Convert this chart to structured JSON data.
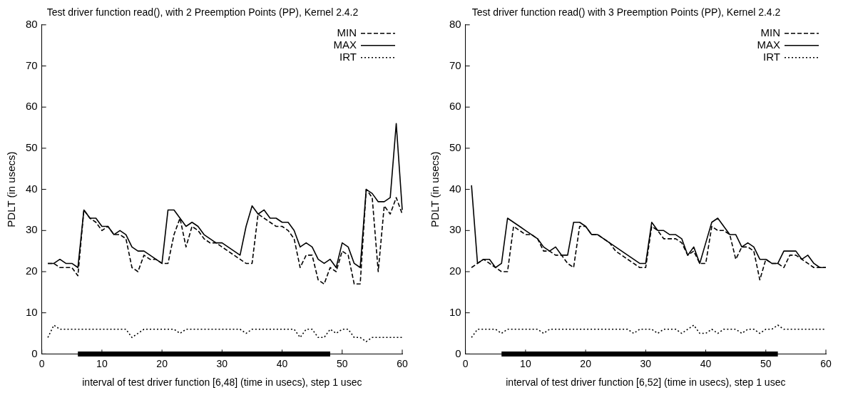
{
  "chart_data": [
    {
      "type": "line",
      "title": "Test driver function read(), with 2 Preemption Points (PP), Kernel 2.4.2",
      "xlabel": "interval of test driver function [6,48] (time in usecs), step 1 usec",
      "ylabel": "PDLT (in usecs)",
      "x": [
        1,
        2,
        3,
        4,
        5,
        6,
        7,
        8,
        9,
        10,
        11,
        12,
        13,
        14,
        15,
        16,
        17,
        18,
        19,
        20,
        21,
        22,
        23,
        24,
        25,
        26,
        27,
        28,
        29,
        30,
        31,
        32,
        33,
        34,
        35,
        36,
        37,
        38,
        39,
        40,
        41,
        42,
        43,
        44,
        45,
        46,
        47,
        48,
        49,
        50,
        51,
        52,
        53,
        54,
        55,
        56,
        57,
        58,
        59,
        60
      ],
      "series": [
        {
          "name": "MIN",
          "color": "#000000",
          "line_style": "dashed",
          "values": [
            22,
            22,
            21,
            21,
            21,
            19,
            35,
            33,
            32,
            30,
            31,
            29,
            29,
            28,
            21,
            20,
            24,
            23,
            23,
            22,
            22,
            29,
            33,
            26,
            31,
            30,
            28,
            27,
            27,
            26,
            25,
            24,
            23,
            22,
            22,
            34,
            33,
            32,
            31,
            31,
            30,
            28,
            21,
            24,
            24,
            18,
            17,
            21,
            20,
            25,
            24,
            17,
            17,
            40,
            38,
            20,
            36,
            34,
            38,
            34
          ]
        },
        {
          "name": "MAX",
          "color": "#000000",
          "line_style": "solid",
          "values": [
            22,
            22,
            23,
            22,
            22,
            21,
            35,
            33,
            33,
            31,
            31,
            29,
            30,
            29,
            26,
            25,
            25,
            24,
            23,
            22,
            35,
            35,
            33,
            31,
            32,
            31,
            29,
            28,
            27,
            27,
            26,
            25,
            24,
            31,
            36,
            34,
            35,
            33,
            33,
            32,
            32,
            30,
            26,
            27,
            26,
            23,
            22,
            23,
            21,
            27,
            26,
            22,
            21,
            40,
            39,
            37,
            37,
            38,
            56,
            35
          ]
        },
        {
          "name": "IRT",
          "color": "#000000",
          "line_style": "dotted",
          "values": [
            4,
            7,
            6,
            6,
            6,
            6,
            6,
            6,
            6,
            6,
            6,
            6,
            6,
            6,
            4,
            5,
            6,
            6,
            6,
            6,
            6,
            6,
            5,
            6,
            6,
            6,
            6,
            6,
            6,
            6,
            6,
            6,
            6,
            5,
            6,
            6,
            6,
            6,
            6,
            6,
            6,
            6,
            4,
            6,
            6,
            4,
            4,
            6,
            5,
            6,
            6,
            4,
            4,
            3,
            4,
            4,
            4,
            4,
            4,
            4
          ]
        },
        {
          "color": "#000000",
          "x": [
            6,
            48
          ],
          "values": [
            0,
            0
          ]
        }
      ],
      "xlim": [
        0,
        60
      ],
      "xticks": [
        0,
        10,
        20,
        30,
        40,
        50,
        60
      ],
      "ylim": [
        0,
        80
      ],
      "yticks": [
        0,
        10,
        20,
        30,
        40,
        50,
        60,
        70,
        80
      ],
      "grid": false,
      "legend": "top right"
    },
    {
      "type": "line",
      "title": "Test driver function read() with 3 Preemption Points (PP), Kernel 2.4.2",
      "xlabel": "interval of test driver function [6,52] (time in usecs), step 1 usec",
      "ylabel": "PDLT (in usecs)",
      "x": [
        1,
        2,
        3,
        4,
        5,
        6,
        7,
        8,
        9,
        10,
        11,
        12,
        13,
        14,
        15,
        16,
        17,
        18,
        19,
        20,
        21,
        22,
        23,
        24,
        25,
        26,
        27,
        28,
        29,
        30,
        31,
        32,
        33,
        34,
        35,
        36,
        37,
        38,
        39,
        40,
        41,
        42,
        43,
        44,
        45,
        46,
        47,
        48,
        49,
        50,
        51,
        52,
        53,
        54,
        55,
        56,
        57,
        58,
        59,
        60
      ],
      "series": [
        {
          "name": "MIN",
          "color": "#000000",
          "line_style": "dashed",
          "values": [
            21,
            22,
            23,
            22,
            21,
            20,
            20,
            31,
            30,
            29,
            29,
            28,
            25,
            25,
            24,
            24,
            22,
            21,
            31,
            31,
            29,
            29,
            28,
            27,
            25,
            24,
            23,
            22,
            21,
            21,
            31,
            30,
            28,
            28,
            28,
            27,
            24,
            25,
            22,
            22,
            31,
            30,
            30,
            29,
            23,
            26,
            26,
            25,
            18,
            23,
            22,
            22,
            21,
            24,
            24,
            23,
            22,
            21,
            21,
            21
          ]
        },
        {
          "name": "MAX",
          "color": "#000000",
          "line_style": "solid",
          "values": [
            41,
            22,
            23,
            23,
            21,
            22,
            33,
            32,
            31,
            30,
            29,
            28,
            26,
            25,
            26,
            24,
            24,
            32,
            32,
            31,
            29,
            29,
            28,
            27,
            26,
            25,
            24,
            23,
            22,
            22,
            32,
            30,
            30,
            29,
            29,
            28,
            24,
            26,
            22,
            27,
            32,
            33,
            31,
            29,
            29,
            26,
            27,
            26,
            23,
            23,
            22,
            22,
            25,
            25,
            25,
            23,
            24,
            22,
            21,
            21
          ]
        },
        {
          "name": "IRT",
          "color": "#000000",
          "line_style": "dotted",
          "values": [
            4,
            6,
            6,
            6,
            6,
            5,
            6,
            6,
            6,
            6,
            6,
            6,
            5,
            6,
            6,
            6,
            6,
            6,
            6,
            6,
            6,
            6,
            6,
            6,
            6,
            6,
            6,
            5,
            6,
            6,
            6,
            5,
            6,
            6,
            6,
            5,
            6,
            7,
            5,
            5,
            6,
            5,
            6,
            6,
            6,
            5,
            6,
            6,
            5,
            6,
            6,
            7,
            6,
            6,
            6,
            6,
            6,
            6,
            6,
            6
          ]
        },
        {
          "color": "#000000",
          "x": [
            6,
            52
          ],
          "values": [
            0,
            0
          ]
        }
      ],
      "xlim": [
        0,
        60
      ],
      "xticks": [
        0,
        10,
        20,
        30,
        40,
        50,
        60
      ],
      "ylim": [
        0,
        80
      ],
      "yticks": [
        0,
        10,
        20,
        30,
        40,
        50,
        60,
        70,
        80
      ],
      "grid": false,
      "legend": "top right"
    }
  ]
}
